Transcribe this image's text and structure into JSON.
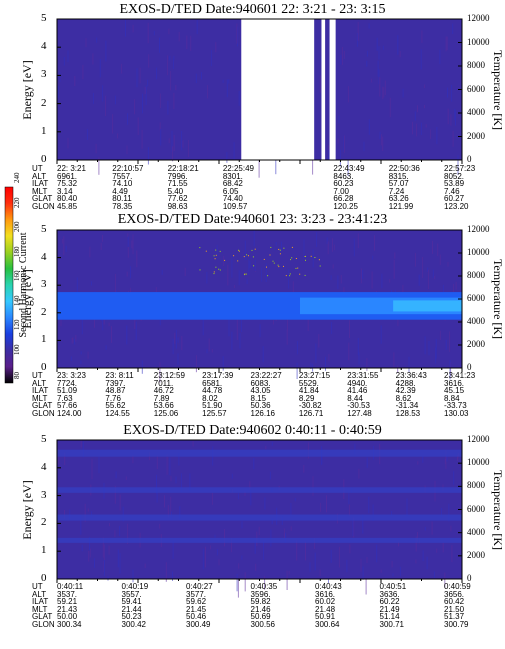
{
  "colors": {
    "bg": "#3d2da3",
    "band_blue": "#1f5cf2",
    "band_light": "#2a86ff",
    "band_cyan": "#35b3ff",
    "gap": "#ffffff"
  },
  "colorbar": {
    "label": "Second Harmonic Current",
    "ticks": [
      "80",
      "100",
      "120",
      "140",
      "160",
      "180",
      "200",
      "220",
      "240"
    ],
    "stops": [
      "#000000",
      "#5a1f8a",
      "#3d2da3",
      "#1a3fe0",
      "#2a86ff",
      "#35c8ff",
      "#2ad4b0",
      "#28c040",
      "#9ad020",
      "#f2e020",
      "#ff9a10",
      "#ff3010",
      "#ff0000"
    ]
  },
  "chart_data": [
    {
      "type": "heatmap",
      "title": "EXOS-D/TED   Date:940601  22: 3:21 - 23: 3:15",
      "ylabel": "Energy [eV]",
      "y2label": "Temperature [K]",
      "ylim": [
        0,
        5
      ],
      "y2lim": [
        0,
        12000
      ],
      "yticks": [
        "0",
        "1",
        "2",
        "3",
        "4",
        "5"
      ],
      "y2ticks": [
        "0",
        "2000",
        "4000",
        "6000",
        "8000",
        "10000",
        "12000"
      ],
      "gaps": [
        [
          0.455,
          0.635
        ],
        [
          0.653,
          0.662
        ],
        [
          0.673,
          0.688
        ]
      ],
      "rows": [
        {
          "name": "UT",
          "values": [
            "22: 3:21",
            "22:10:57",
            "22:18:21",
            "22:25:49",
            "",
            "22:43:49",
            "22:50:36",
            "22:57:23"
          ]
        },
        {
          "name": "ALT",
          "values": [
            "6961.",
            "7557.",
            "7996.",
            "8301.",
            "",
            "8463.",
            "8315.",
            "8052."
          ]
        },
        {
          "name": "ILAT",
          "values": [
            "75.32",
            "74.10",
            "71.55",
            "68.42",
            "",
            "60.23",
            "57.07",
            "53.89"
          ]
        },
        {
          "name": "MLT",
          "values": [
            "3.14",
            "4.49",
            "5.40",
            "6.05",
            "",
            "7.00",
            "7.24",
            "7.46"
          ]
        },
        {
          "name": "GLAT",
          "values": [
            "80.40",
            "80.11",
            "77.62",
            "74.40",
            "",
            "66.28",
            "63.26",
            "60.27"
          ]
        },
        {
          "name": "GLON",
          "values": [
            "45.85",
            "78.35",
            "98.63",
            "109.57",
            "",
            "120.25",
            "121.99",
            "123.20"
          ]
        }
      ]
    },
    {
      "type": "heatmap",
      "title": "EXOS-D/TED   Date:940601  23: 3:23 - 23:41:23",
      "ylabel": "Energy [eV]",
      "y2label": "Temperature [K]",
      "ylim": [
        0,
        5
      ],
      "y2lim": [
        0,
        12000
      ],
      "yticks": [
        "0",
        "1",
        "2",
        "3",
        "4",
        "5"
      ],
      "y2ticks": [
        "0",
        "2000",
        "4000",
        "6000",
        "8000",
        "10000",
        "12000"
      ],
      "rows": [
        {
          "name": "UT",
          "values": [
            "23: 3:23",
            "23: 8:11",
            "23:12:59",
            "23:17:39",
            "23:22:27",
            "23:27:15",
            "23:31:55",
            "23:36:43",
            "23:41:23"
          ]
        },
        {
          "name": "ALT",
          "values": [
            "7724.",
            "7397.",
            "7011.",
            "6581.",
            "6083.",
            "5529.",
            "4940.",
            "4288.",
            "3616."
          ]
        },
        {
          "name": "ILAT",
          "values": [
            "51.09",
            "48.87",
            "46.72",
            "44.78",
            "43.05",
            "41.84",
            "41.46",
            "42.39",
            "45.15"
          ]
        },
        {
          "name": "MLT",
          "values": [
            "7.63",
            "7.76",
            "7.89",
            "8.02",
            "8.15",
            "8.29",
            "8.44",
            "8.62",
            "8.84"
          ]
        },
        {
          "name": "GLAT",
          "values": [
            "57.66",
            "55.62",
            "53.66",
            "51.90",
            "50.36",
            "-30.82",
            "-30.53",
            "-31.34",
            "-33.73"
          ]
        },
        {
          "name": "GLON",
          "values": [
            "124.00",
            "124.55",
            "125.06",
            "125.57",
            "126.16",
            "126.71",
            "127.48",
            "128.53",
            "130.03"
          ]
        }
      ]
    },
    {
      "type": "heatmap",
      "title": "EXOS-D/TED   Date:940602  0:40:11 - 0:40:59",
      "ylabel": "Energy [eV]",
      "y2label": "Temperature [K]",
      "ylim": [
        0,
        5
      ],
      "y2lim": [
        0,
        12000
      ],
      "yticks": [
        "0",
        "1",
        "2",
        "3",
        "4",
        "5"
      ],
      "y2ticks": [
        "0",
        "2000",
        "4000",
        "6000",
        "8000",
        "10000",
        "12000"
      ],
      "rows": [
        {
          "name": "UT",
          "values": [
            "0:40:11",
            "0:40:19",
            "0:40:27",
            "0:40:35",
            "0:40:43",
            "0:40:51",
            "0:40:59"
          ]
        },
        {
          "name": "ALT",
          "values": [
            "3537.",
            "3557.",
            "3577.",
            "3596.",
            "3616.",
            "3636.",
            "3656."
          ]
        },
        {
          "name": "ILAT",
          "values": [
            "59.21",
            "59.41",
            "59.62",
            "59.82",
            "60.02",
            "60.22",
            "60.42"
          ]
        },
        {
          "name": "MLT",
          "values": [
            "21.43",
            "21.44",
            "21.45",
            "21.46",
            "21.48",
            "21.49",
            "21.50"
          ]
        },
        {
          "name": "GLAT",
          "values": [
            "50.00",
            "50.23",
            "50.46",
            "50.69",
            "50.91",
            "51.14",
            "51.37"
          ]
        },
        {
          "name": "GLON",
          "values": [
            "300.34",
            "300.42",
            "300.49",
            "300.56",
            "300.64",
            "300.71",
            "300.79"
          ]
        }
      ]
    }
  ]
}
